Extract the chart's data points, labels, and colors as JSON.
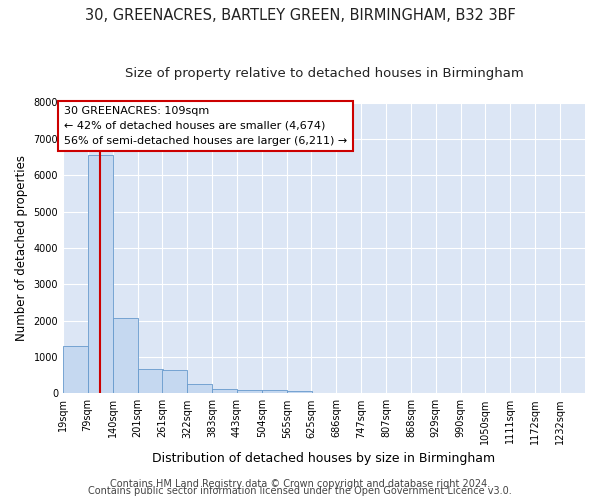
{
  "title1": "30, GREENACRES, BARTLEY GREEN, BIRMINGHAM, B32 3BF",
  "title2": "Size of property relative to detached houses in Birmingham",
  "xlabel": "Distribution of detached houses by size in Birmingham",
  "ylabel": "Number of detached properties",
  "footer1": "Contains HM Land Registry data © Crown copyright and database right 2024.",
  "footer2": "Contains public sector information licensed under the Open Government Licence v3.0.",
  "bins": [
    19,
    79,
    140,
    201,
    261,
    322,
    383,
    443,
    504,
    565,
    625,
    686,
    747,
    807,
    868,
    929,
    990,
    1050,
    1111,
    1172,
    1232
  ],
  "bar_values": [
    1310,
    6550,
    2080,
    660,
    645,
    250,
    130,
    100,
    80,
    75,
    0,
    0,
    0,
    0,
    0,
    0,
    0,
    0,
    0,
    0
  ],
  "bar_color": "#c5d8f0",
  "bar_edgecolor": "#6699cc",
  "property_size": 109,
  "red_line_color": "#cc0000",
  "annotation_line1": "30 GREENACRES: 109sqm",
  "annotation_line2": "← 42% of detached houses are smaller (4,674)",
  "annotation_line3": "56% of semi-detached houses are larger (6,211) →",
  "annotation_box_color": "#cc0000",
  "ylim": [
    0,
    8000
  ],
  "yticks": [
    0,
    1000,
    2000,
    3000,
    4000,
    5000,
    6000,
    7000,
    8000
  ],
  "background_color": "#dce6f5",
  "grid_color": "#ffffff",
  "title_fontsize": 10.5,
  "subtitle_fontsize": 9.5,
  "ylabel_fontsize": 8.5,
  "xlabel_fontsize": 9,
  "tick_fontsize": 7,
  "annot_fontsize": 8,
  "footer_fontsize": 7
}
